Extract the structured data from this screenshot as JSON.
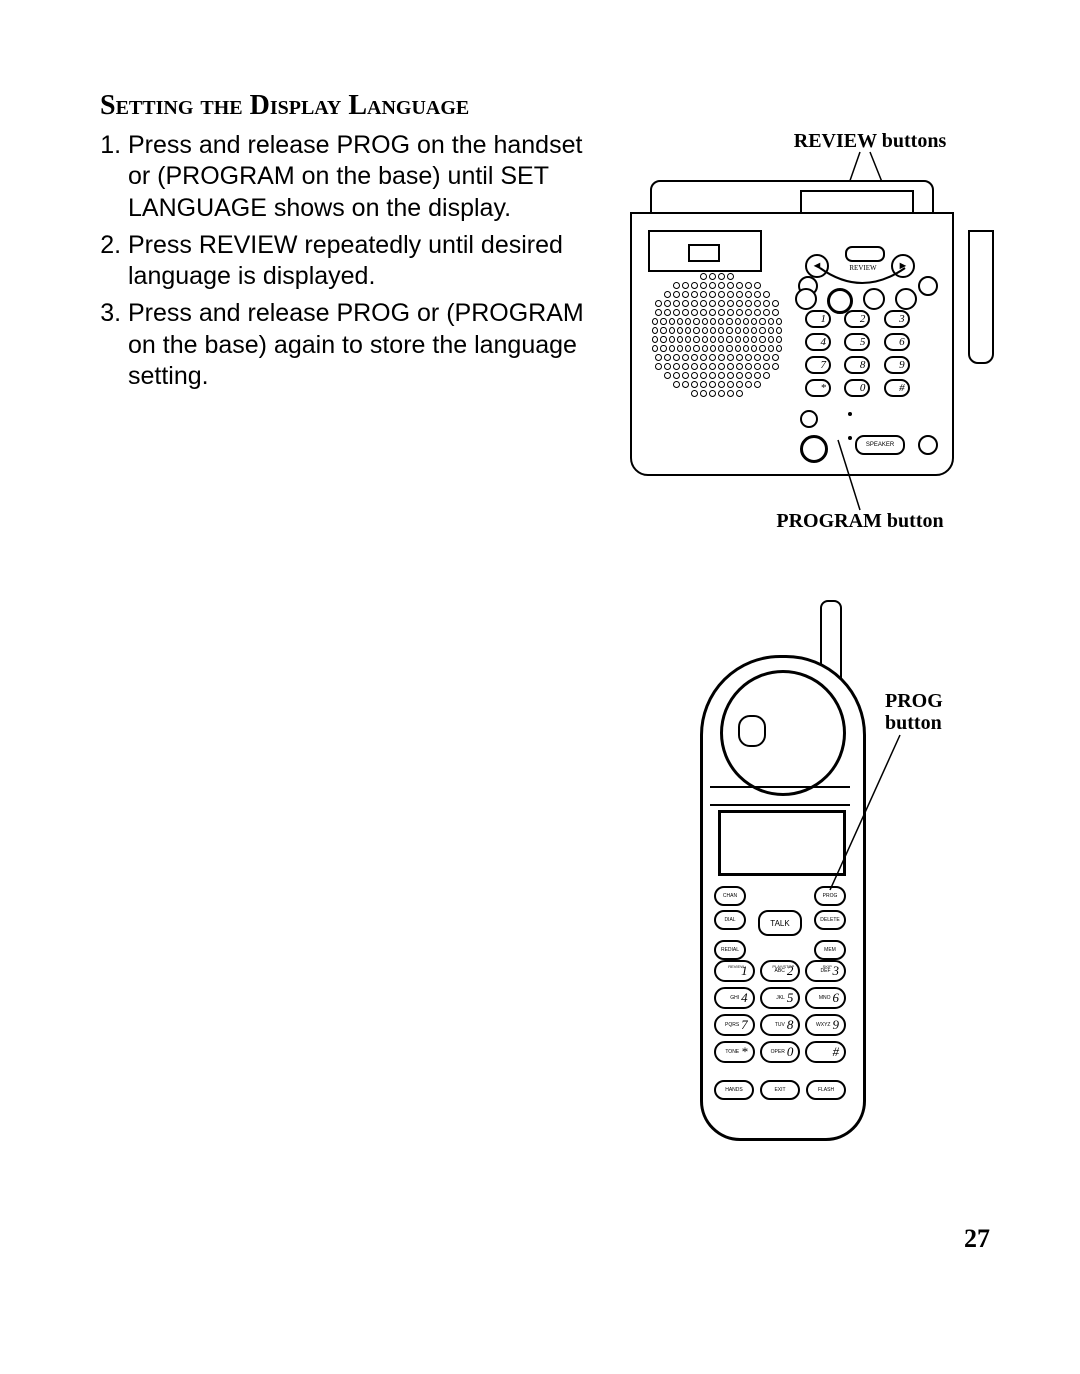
{
  "heading": "Setting the Display Language",
  "steps": [
    "Press and release PROG on the handset or (PROGRAM on the base) until SET LANGUAGE shows on the display.",
    "Press REVIEW repeatedly until desired language is displayed.",
    "Press and release PROG or (PROGRAM on the base) again to store the language setting."
  ],
  "labels": {
    "review": "REVIEW buttons",
    "program": "PROGRAM button",
    "prog_line1": "PROG",
    "prog_line2": "button"
  },
  "page_number": "27",
  "base": {
    "review_text": "REVIEW",
    "keypad": [
      "1",
      "2",
      "3",
      "4",
      "5",
      "6",
      "7",
      "8",
      "9",
      "*",
      "0",
      "#"
    ],
    "speaker_label": "SPEAKER"
  },
  "handset": {
    "talk": "TALK",
    "row1": [
      "CHAN",
      "",
      "PROG"
    ],
    "row2": [
      "DIAL",
      "TALK",
      "DELETE"
    ],
    "row3": [
      "REDIAL",
      "",
      "MEM"
    ],
    "tinylabels": [
      "REVIEW",
      "PLAY/STOP",
      "SKIP"
    ],
    "keypad": [
      {
        "pre": "",
        "n": "1"
      },
      {
        "pre": "ABC",
        "n": "2"
      },
      {
        "pre": "DEF",
        "n": "3"
      },
      {
        "pre": "GHI",
        "n": "4"
      },
      {
        "pre": "JKL",
        "n": "5"
      },
      {
        "pre": "MNO",
        "n": "6"
      },
      {
        "pre": "PQRS",
        "n": "7"
      },
      {
        "pre": "TUV",
        "n": "8"
      },
      {
        "pre": "WXYZ",
        "n": "9"
      },
      {
        "pre": "TONE",
        "n": "*"
      },
      {
        "pre": "OPER",
        "n": "0"
      },
      {
        "pre": "",
        "n": "#"
      }
    ],
    "bottom": [
      "HANDS",
      "EXIT",
      "FLASH"
    ]
  },
  "colors": {
    "stroke": "#000000",
    "bg": "#ffffff"
  },
  "typography": {
    "heading_family": "serif-smallcaps",
    "heading_size_pt": 18,
    "heading_weight": "bold",
    "body_family": "sans",
    "body_size_pt": 16,
    "label_family": "serif",
    "label_size_pt": 13,
    "label_weight": "bold",
    "pagenum_size_pt": 17
  }
}
